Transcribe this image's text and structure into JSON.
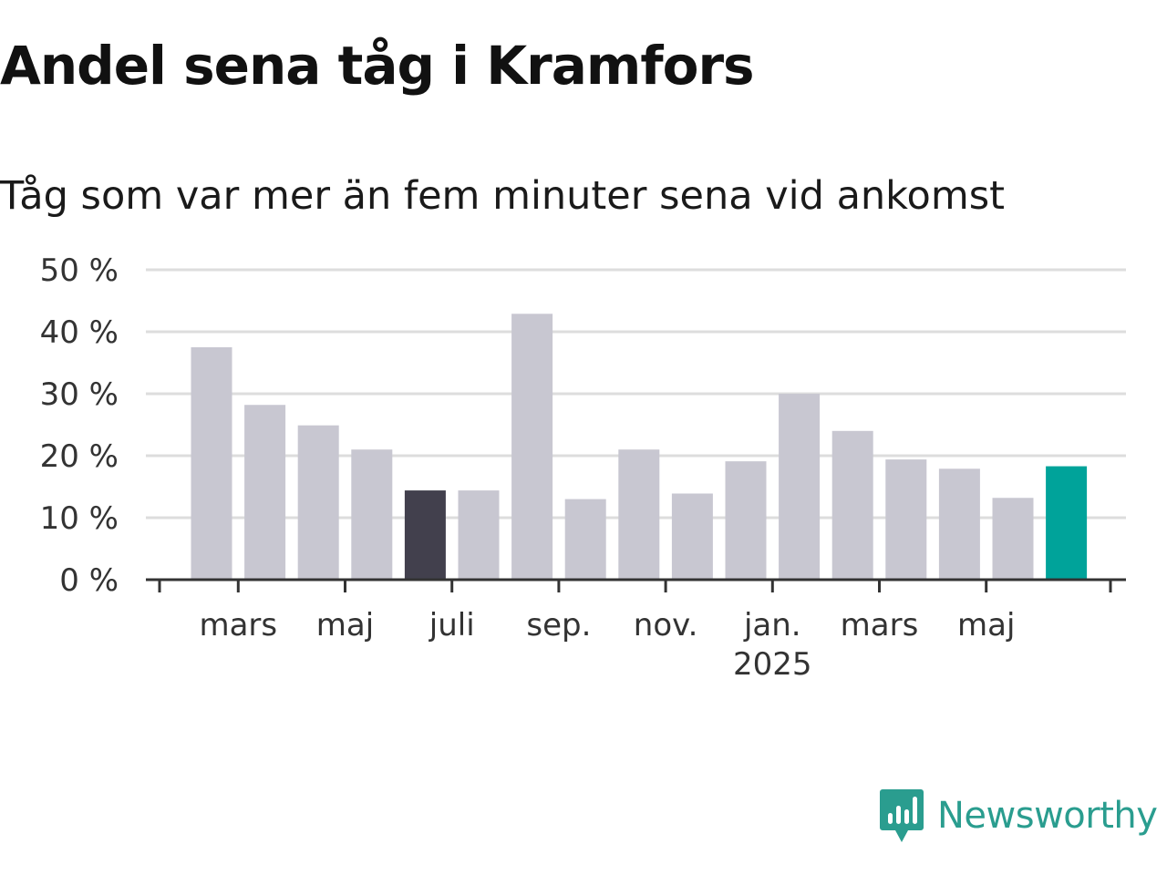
{
  "title": "Andel sena tåg i Kramfors",
  "subtitle": "Tåg som var mer än fem minuter sena vid ankomst",
  "brand": {
    "name": "Newsworthy",
    "icon": "newsworthy-logo-icon",
    "color": "#2a9d8f"
  },
  "colors": {
    "bar_default": "#c8c7d1",
    "bar_highlight_dark": "#42404d",
    "bar_highlight_accent": "#00a39a",
    "gridline": "#dddddd",
    "axis": "#333333"
  },
  "chart_data": {
    "type": "bar",
    "title": "Andel sena tåg i Kramfors",
    "subtitle": "Tåg som var mer än fem minuter sena vid ankomst",
    "xlabel": "",
    "ylabel": "",
    "categories": [
      "2024-02",
      "2024-03",
      "2024-04",
      "2024-05",
      "2024-06",
      "2024-07",
      "2024-08",
      "2024-09",
      "2024-10",
      "2024-11",
      "2024-12",
      "2025-01",
      "2025-02",
      "2025-03",
      "2025-04",
      "2025-05",
      "2025-06"
    ],
    "values": [
      37.5,
      28.2,
      24.9,
      21.0,
      14.4,
      14.4,
      42.9,
      13.0,
      21.0,
      13.9,
      19.1,
      30.0,
      24.0,
      19.4,
      17.9,
      13.2,
      18.3
    ],
    "highlight": {
      "2024-06": "dark",
      "2025-06": "accent"
    },
    "ylim": [
      0,
      50
    ],
    "yticks": [
      0,
      10,
      20,
      30,
      40,
      50
    ],
    "ytick_labels": [
      "0 %",
      "10 %",
      "20 %",
      "30 %",
      "40 %",
      "50 %"
    ],
    "xticks": [
      {
        "at": "2024-03",
        "label": "mars",
        "year": ""
      },
      {
        "at": "2024-05",
        "label": "maj",
        "year": ""
      },
      {
        "at": "2024-07",
        "label": "juli",
        "year": ""
      },
      {
        "at": "2024-09",
        "label": "sep.",
        "year": ""
      },
      {
        "at": "2024-11",
        "label": "nov.",
        "year": ""
      },
      {
        "at": "2025-01",
        "label": "jan.",
        "year": "2025"
      },
      {
        "at": "2025-03",
        "label": "mars",
        "year": ""
      },
      {
        "at": "2025-05",
        "label": "maj",
        "year": ""
      }
    ],
    "grid": true,
    "legend": "none"
  }
}
